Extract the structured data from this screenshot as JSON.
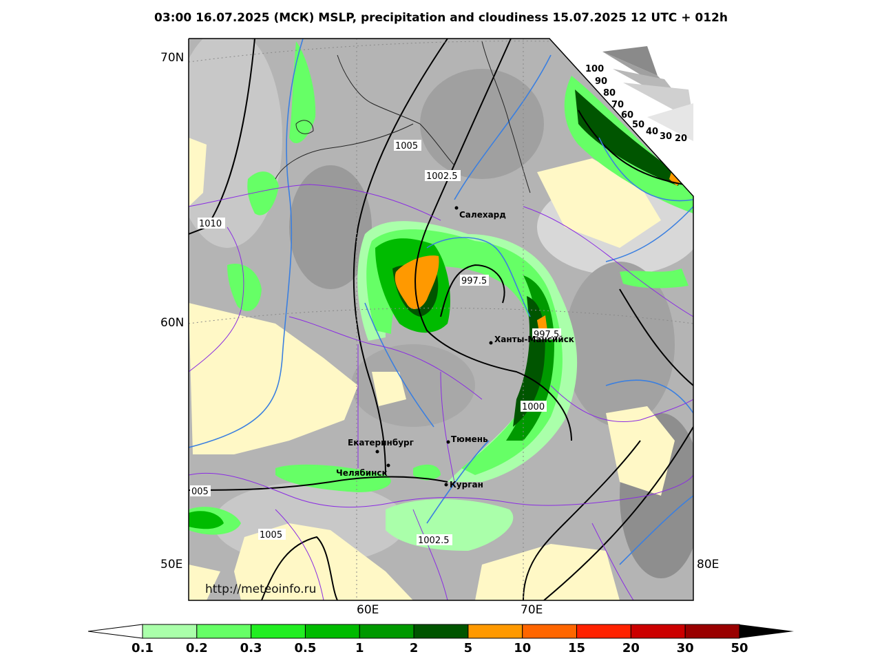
{
  "title": "03:00 16.07.2025 (МСК) MSLP, precipitation and cloudiness 15.07.2025 12 UTC + 012h",
  "axes": {
    "lat_labels": [
      "70N",
      "60N"
    ],
    "lon_labels_bottom": [
      "60E",
      "70E"
    ],
    "corner_left": "50E",
    "corner_right": "80E"
  },
  "cities": [
    {
      "name": "Салехард"
    },
    {
      "name": "Ханты-Мансийск"
    },
    {
      "name": "Екатеринбург"
    },
    {
      "name": "Тюмень"
    },
    {
      "name": "Челябинск"
    },
    {
      "name": "Курган"
    }
  ],
  "isobars": [
    "1005",
    "1002.5",
    "1010",
    "997.5",
    "997.5",
    "1000",
    "005",
    "1005",
    "1002.5"
  ],
  "cloud_scale": [
    "100",
    "90",
    "80",
    "70",
    "60",
    "50",
    "40",
    "30",
    "20"
  ],
  "watermark": "http://meteoinfo.ru",
  "colorbar": {
    "labels": [
      "0.1",
      "0.2",
      "0.3",
      "0.5",
      "1",
      "2",
      "5",
      "10",
      "15",
      "20",
      "30",
      "50"
    ],
    "colors": [
      "#aaffaa",
      "#66ff66",
      "#22ee22",
      "#00bb00",
      "#009900",
      "#005500",
      "#ff9900",
      "#ff6600",
      "#ff2200",
      "#cc0000",
      "#990000"
    ]
  }
}
